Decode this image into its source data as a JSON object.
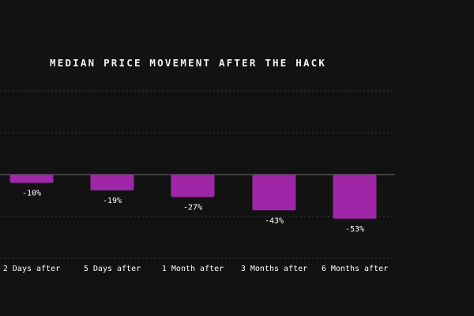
{
  "chart_data": {
    "type": "bar",
    "title": "MEDIAN PRICE MOVEMENT AFTER THE HACK",
    "categories": [
      "2 Days after",
      "5 Days after",
      "1 Month after",
      "3 Months after",
      "6 Months after"
    ],
    "values": [
      -10,
      -19,
      -27,
      -43,
      -53
    ],
    "value_labels": [
      "-10%",
      "-19%",
      "-27%",
      "-43%",
      "-53%"
    ],
    "ylim": [
      -100,
      100
    ],
    "grid": true,
    "colors": {
      "background": "#121212",
      "bar": "#a026a8",
      "text": "#ffffff",
      "grid": "#3a3a3a",
      "zero_line": "#6e6e6e"
    }
  }
}
